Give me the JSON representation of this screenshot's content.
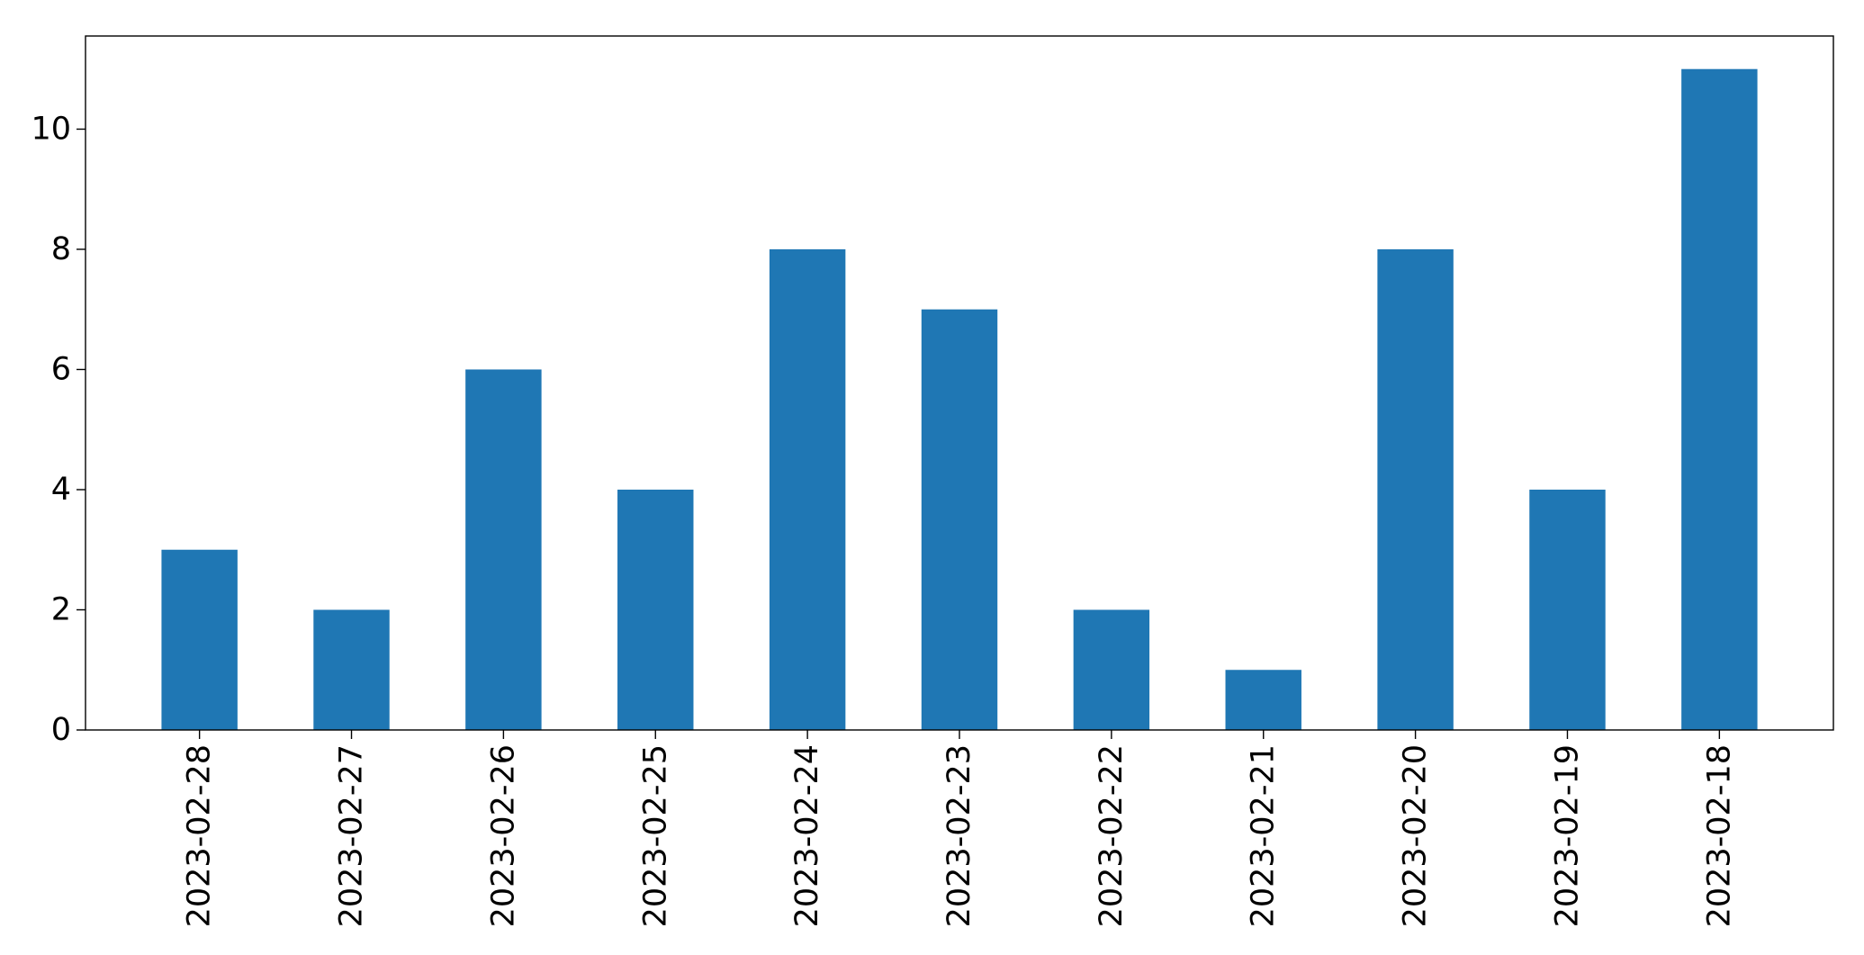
{
  "chart_data": {
    "type": "bar",
    "categories": [
      "2023-02-28",
      "2023-02-27",
      "2023-02-26",
      "2023-02-25",
      "2023-02-24",
      "2023-02-23",
      "2023-02-22",
      "2023-02-21",
      "2023-02-20",
      "2023-02-19",
      "2023-02-18"
    ],
    "values": [
      3,
      2,
      6,
      4,
      8,
      7,
      2,
      1,
      8,
      4,
      11
    ],
    "yticks": [
      "0",
      "2",
      "4",
      "6",
      "8",
      "10"
    ],
    "ylim": [
      0,
      11.55
    ],
    "grid": false,
    "legend": "none",
    "bar_color": "#1f77b4"
  }
}
